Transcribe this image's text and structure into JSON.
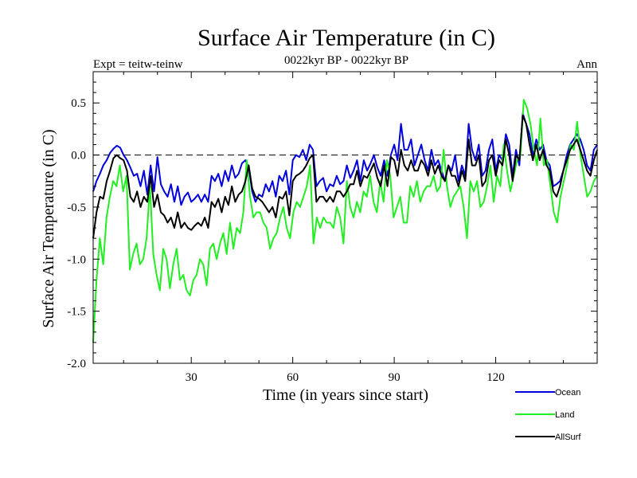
{
  "chart_data": {
    "type": "line",
    "title": "Surface Air Temperature (in C)",
    "subtitle": "0022kyr BP - 0022kyr BP",
    "left_annotation": "Expt = teitw-teinw",
    "right_annotation": "Ann",
    "xlabel": "Time (in years since start)",
    "ylabel": "Surface Air Temperature (in C)",
    "xlim": [
      1,
      150
    ],
    "ylim": [
      -2.0,
      0.8
    ],
    "xticks": [
      30,
      60,
      90,
      120
    ],
    "yticks": [
      0.5,
      0.0,
      -0.5,
      -1.0,
      -1.5,
      -2.0
    ],
    "ytick_labels": [
      "0.5",
      "0.0",
      "-0.5",
      "-1.0",
      "-1.5",
      "-2.0"
    ],
    "zero_line": true,
    "legend": [
      {
        "name": "Ocean",
        "color": "#0000dd"
      },
      {
        "name": "Land",
        "color": "#22ee22"
      },
      {
        "name": "AllSurf",
        "color": "#000000"
      }
    ],
    "series": [
      {
        "name": "Ocean",
        "color": "#0000dd",
        "values": [
          -0.35,
          -0.25,
          -0.18,
          -0.1,
          -0.05,
          0.02,
          0.06,
          0.09,
          0.07,
          0.0,
          -0.05,
          -0.12,
          -0.2,
          -0.18,
          -0.3,
          -0.15,
          -0.38,
          -0.1,
          -0.35,
          -0.02,
          -0.28,
          -0.35,
          -0.4,
          -0.28,
          -0.45,
          -0.3,
          -0.48,
          -0.4,
          -0.36,
          -0.45,
          -0.42,
          -0.38,
          -0.45,
          -0.38,
          -0.45,
          -0.2,
          -0.25,
          -0.18,
          -0.3,
          -0.15,
          -0.25,
          -0.1,
          -0.22,
          -0.18,
          -0.08,
          -0.05,
          -0.12,
          -0.35,
          -0.45,
          -0.38,
          -0.4,
          -0.28,
          -0.35,
          -0.25,
          -0.4,
          -0.2,
          -0.25,
          -0.15,
          -0.38,
          -0.05,
          0.0,
          -0.02,
          0.05,
          -0.05,
          0.1,
          0.05,
          -0.3,
          -0.25,
          -0.22,
          -0.35,
          -0.28,
          -0.3,
          -0.2,
          -0.28,
          -0.25,
          -0.1,
          -0.22,
          -0.15,
          -0.05,
          -0.25,
          -0.05,
          -0.15,
          -0.08,
          0.0,
          -0.12,
          -0.2,
          -0.05,
          -0.2,
          0.0,
          0.1,
          -0.05,
          0.3,
          0.05,
          0.05,
          0.15,
          -0.1,
          0.0,
          0.1,
          -0.05,
          -0.15,
          0.05,
          -0.1,
          -0.05,
          -0.15,
          -0.25,
          -0.1,
          -0.15,
          0.0,
          -0.25,
          -0.1,
          -0.2,
          0.3,
          0.05,
          -0.05,
          0.1,
          -0.2,
          -0.15,
          0.05,
          0.15,
          -0.15,
          0.0,
          -0.05,
          0.2,
          0.1,
          -0.2,
          0.05,
          -0.1,
          0.4,
          0.3,
          0.2,
          0.0,
          0.15,
          0.05,
          0.1,
          -0.05,
          -0.1,
          -0.3,
          -0.28,
          -0.25,
          -0.15,
          0.0,
          0.1,
          0.15,
          0.2,
          0.15,
          0.05,
          -0.1,
          -0.15,
          0.05,
          0.1
        ]
      },
      {
        "name": "Land",
        "color": "#22ee22",
        "values": [
          -1.8,
          -1.2,
          -0.8,
          -1.05,
          -0.6,
          -0.4,
          -0.25,
          -0.3,
          -0.1,
          -0.35,
          -0.2,
          -1.1,
          -0.95,
          -0.85,
          -1.05,
          -1.0,
          -0.8,
          -0.3,
          -0.95,
          -1.15,
          -1.3,
          -0.9,
          -1.0,
          -1.28,
          -1.05,
          -0.9,
          -1.2,
          -1.15,
          -1.3,
          -1.35,
          -1.2,
          -1.15,
          -1.0,
          -1.05,
          -1.25,
          -0.9,
          -0.85,
          -1.0,
          -0.85,
          -0.75,
          -0.95,
          -0.65,
          -0.9,
          -0.7,
          -0.75,
          -0.55,
          -0.05,
          -0.4,
          -0.6,
          -0.55,
          -0.55,
          -0.65,
          -0.7,
          -0.9,
          -0.8,
          -0.75,
          -0.6,
          -0.5,
          -0.7,
          -0.8,
          -0.55,
          -0.45,
          -0.5,
          -0.4,
          -0.3,
          -0.1,
          -0.85,
          -0.6,
          -0.7,
          -0.6,
          -0.65,
          -0.65,
          -0.7,
          -0.5,
          -0.6,
          -0.85,
          -0.25,
          -0.5,
          -0.6,
          -0.45,
          -0.55,
          -0.35,
          -0.4,
          -0.2,
          -0.45,
          -0.55,
          -0.25,
          -0.45,
          -0.05,
          -0.2,
          -0.6,
          -0.5,
          -0.4,
          -0.65,
          -0.65,
          -0.3,
          -0.4,
          -0.25,
          -0.45,
          -0.35,
          -0.3,
          -0.3,
          -0.2,
          -0.35,
          -0.3,
          0.05,
          -0.3,
          -0.5,
          -0.4,
          -0.35,
          -0.3,
          -0.5,
          -0.8,
          -0.25,
          -0.35,
          -0.25,
          -0.5,
          -0.45,
          -0.3,
          -0.1,
          -0.45,
          -0.2,
          -0.3,
          0.1,
          -0.15,
          -0.35,
          -0.2,
          -0.05,
          0.0,
          0.53,
          0.45,
          0.3,
          0.05,
          -0.1,
          0.35,
          -0.1,
          -0.05,
          -0.3,
          -0.55,
          -0.65,
          -0.4,
          -0.25,
          -0.1,
          0.1,
          0.05,
          0.32,
          0.0,
          -0.2,
          -0.4,
          -0.35,
          -0.25,
          -0.2
        ]
      },
      {
        "name": "AllSurf",
        "color": "#000000",
        "values": [
          -0.8,
          -0.55,
          -0.4,
          -0.42,
          -0.25,
          -0.15,
          -0.03,
          0.0,
          -0.03,
          -0.05,
          -0.15,
          -0.4,
          -0.45,
          -0.35,
          -0.5,
          -0.4,
          -0.45,
          -0.2,
          -0.5,
          -0.38,
          -0.55,
          -0.58,
          -0.65,
          -0.6,
          -0.7,
          -0.55,
          -0.7,
          -0.65,
          -0.7,
          -0.72,
          -0.68,
          -0.65,
          -0.68,
          -0.6,
          -0.7,
          -0.45,
          -0.5,
          -0.42,
          -0.55,
          -0.4,
          -0.48,
          -0.3,
          -0.45,
          -0.38,
          -0.35,
          -0.25,
          -0.1,
          -0.32,
          -0.4,
          -0.42,
          -0.45,
          -0.5,
          -0.55,
          -0.5,
          -0.6,
          -0.4,
          -0.42,
          -0.35,
          -0.58,
          -0.25,
          -0.2,
          -0.18,
          -0.15,
          -0.1,
          -0.03,
          0.0,
          -0.45,
          -0.4,
          -0.4,
          -0.45,
          -0.4,
          -0.45,
          -0.35,
          -0.35,
          -0.4,
          -0.35,
          -0.28,
          -0.28,
          -0.15,
          -0.3,
          -0.2,
          -0.22,
          -0.15,
          -0.08,
          -0.22,
          -0.3,
          -0.1,
          -0.3,
          -0.02,
          -0.05,
          -0.2,
          0.05,
          -0.1,
          -0.15,
          -0.05,
          -0.15,
          -0.15,
          -0.05,
          -0.1,
          -0.2,
          -0.05,
          -0.18,
          -0.1,
          -0.2,
          -0.25,
          -0.1,
          -0.2,
          -0.2,
          -0.3,
          -0.15,
          -0.25,
          0.15,
          -0.1,
          -0.1,
          0.0,
          -0.3,
          -0.25,
          -0.05,
          0.0,
          -0.2,
          -0.05,
          -0.1,
          0.15,
          0.0,
          -0.25,
          0.0,
          -0.05,
          0.38,
          0.3,
          0.1,
          -0.05,
          0.1,
          -0.05,
          0.05,
          -0.1,
          -0.15,
          -0.35,
          -0.4,
          -0.3,
          -0.15,
          -0.05,
          0.05,
          0.1,
          0.15,
          0.05,
          -0.05,
          -0.15,
          -0.2,
          -0.05,
          0.05
        ]
      }
    ]
  }
}
